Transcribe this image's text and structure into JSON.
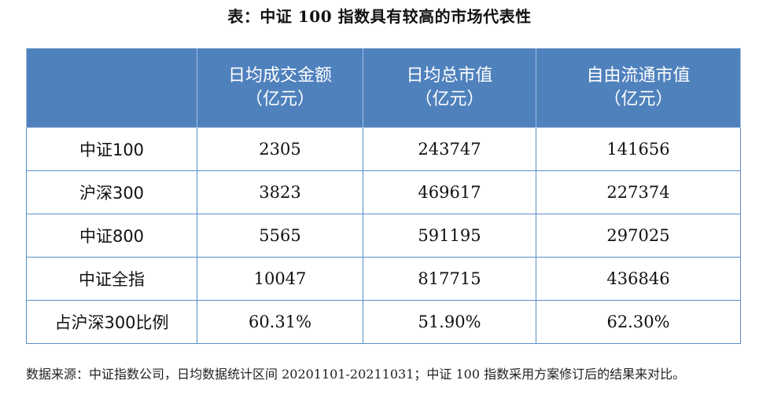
{
  "title": "表：中证 100 指数具有较高的市场代表性",
  "table": {
    "headers": [
      {
        "label": "",
        "unit": ""
      },
      {
        "label": "日均成交金额",
        "unit": "（亿元）"
      },
      {
        "label": "日均总市值",
        "unit": "（亿元）"
      },
      {
        "label": "自由流通市值",
        "unit": "（亿元）"
      }
    ],
    "rows": [
      {
        "name": "中证100",
        "cells": [
          "2305",
          "243747",
          "141656"
        ]
      },
      {
        "name": "沪深300",
        "cells": [
          "3823",
          "469617",
          "227374"
        ]
      },
      {
        "name": "中证800",
        "cells": [
          "5565",
          "591195",
          "297025"
        ]
      },
      {
        "name": "中证全指",
        "cells": [
          "10047",
          "817715",
          "436846"
        ]
      },
      {
        "name": "占沪深300比例",
        "cells": [
          "60.31%",
          "51.90%",
          "62.30%"
        ]
      }
    ]
  },
  "note": "数据来源：中证指数公司，日均数据统计区间 20201101-20211031；中证 100 指数采用方案修订后的结果来对比。",
  "colors": {
    "header_bg": "#4f81bd",
    "border": "#5b8fc8"
  }
}
